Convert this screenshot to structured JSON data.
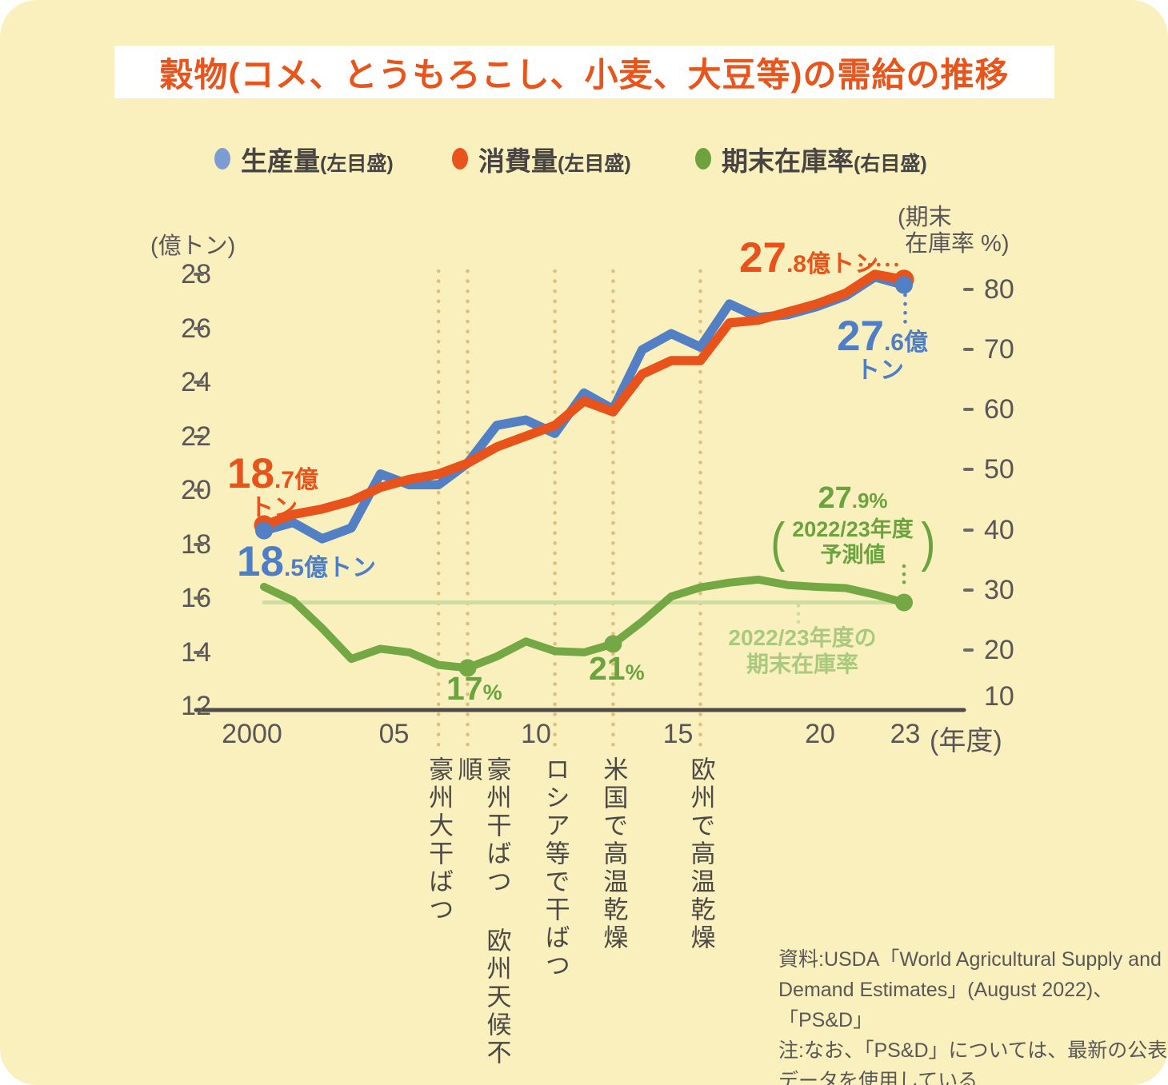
{
  "title": "穀物(コメ、とうもろこし、小麦、大豆等)の需給の推移",
  "legend": [
    {
      "label": "生産量",
      "note": "(左目盛)",
      "color": "#7d9cd3"
    },
    {
      "label": "消費量",
      "note": "(左目盛)",
      "color": "#e8541c"
    },
    {
      "label": "期末在庫率",
      "note": "(右目盛)",
      "color": "#6da23c"
    }
  ],
  "axes": {
    "left_unit": "(億トン)",
    "right_unit_line1": "(期末",
    "right_unit_line2": "在庫率 %)",
    "x_unit": "(年度)"
  },
  "annotations": {
    "consumption_start_big": "18",
    "consumption_start_small": ".7億",
    "consumption_start_unit": "トン",
    "production_start_big": "18",
    "production_start_small": ".5億トン",
    "consumption_end_big": "27",
    "consumption_end_small": ".8億トン",
    "production_end_big": "27",
    "production_end_small": ".6億",
    "production_end_unit": "トン",
    "stock_2007_big": "17",
    "stock_2007_small": "%",
    "stock_2012_big": "21",
    "stock_2012_small": "%",
    "stock_end_big": "27",
    "stock_end_small": ".9%",
    "forecast_line1": "2022/23年度",
    "forecast_line2": "予測値",
    "ref_label_line1": "2022/23年度の",
    "ref_label_line2": "期末在庫率"
  },
  "source_lines": [
    "資料:USDA「World Agricultural Supply and",
    "Demand Estimates」(August 2022)、「PS&D」",
    "注:なお、「PS&D」については、最新の公表",
    "データを使用している"
  ],
  "colors": {
    "background": "#faf0bd",
    "title": "#e9541a",
    "production": "#5380c5",
    "consumption": "#e8521b",
    "stock": "#74a844",
    "stock_light": "#cadfa0",
    "stock_label_light": "#a9c97e",
    "axis_text": "#5a5557",
    "baseline": "#4f4b4a",
    "event_dots": "#ddc07e"
  },
  "chart_data": {
    "type": "line",
    "title": "穀物(コメ、とうもろこし、小麦、大豆等)の需給の推移",
    "x": [
      2000,
      2001,
      2002,
      2003,
      2004,
      2005,
      2006,
      2007,
      2008,
      2009,
      2010,
      2011,
      2012,
      2013,
      2014,
      2015,
      2016,
      2017,
      2018,
      2019,
      2020,
      2021,
      2022
    ],
    "x_axis": {
      "tick_labels": [
        "2000",
        "05",
        "10",
        "15",
        "20",
        "23"
      ],
      "tick_years": [
        2000,
        2005,
        2010,
        2015,
        2020,
        2023
      ],
      "unit": "(年度)"
    },
    "left_axis": {
      "unit": "(億トン)",
      "ticks": [
        28,
        26,
        24,
        22,
        20,
        18,
        16,
        14,
        12
      ],
      "range": [
        12,
        28
      ]
    },
    "right_axis": {
      "unit": "(期末在庫率 %)",
      "ticks": [
        80,
        70,
        60,
        50,
        40,
        30,
        20,
        10
      ],
      "range": [
        10,
        80
      ]
    },
    "series": [
      {
        "name": "生産量",
        "axis": "left",
        "color": "#5380c5",
        "values": [
          18.5,
          18.8,
          18.2,
          18.6,
          20.6,
          20.2,
          20.2,
          21.0,
          22.4,
          22.6,
          22.1,
          23.6,
          23.0,
          25.2,
          25.8,
          25.3,
          26.9,
          26.4,
          26.5,
          26.8,
          27.2,
          27.9,
          27.6
        ]
      },
      {
        "name": "消費量",
        "axis": "left",
        "color": "#e8521b",
        "values": [
          18.7,
          19.1,
          19.3,
          19.6,
          20.1,
          20.4,
          20.6,
          21.0,
          21.6,
          22.0,
          22.4,
          23.3,
          22.9,
          24.3,
          24.8,
          24.8,
          26.2,
          26.3,
          26.6,
          26.9,
          27.3,
          28.0,
          27.8
        ]
      },
      {
        "name": "期末在庫率",
        "axis": "right",
        "color": "#74a844",
        "values": [
          30.5,
          28.2,
          23.6,
          18.5,
          20.2,
          19.6,
          17.5,
          17.0,
          18.9,
          21.4,
          19.8,
          19.6,
          21.0,
          24.7,
          28.9,
          30.4,
          31.2,
          31.7,
          30.8,
          30.5,
          30.3,
          29.2,
          27.9
        ]
      }
    ],
    "labeled_points": [
      {
        "series": "消費量",
        "year": 2000,
        "label": "18.7億トン"
      },
      {
        "series": "生産量",
        "year": 2000,
        "label": "18.5億トン"
      },
      {
        "series": "消費量",
        "year": 2022,
        "label": "27.8億トン"
      },
      {
        "series": "生産量",
        "year": 2022,
        "label": "27.6億トン"
      },
      {
        "series": "期末在庫率",
        "year": 2007,
        "label": "17%"
      },
      {
        "series": "期末在庫率",
        "year": 2012,
        "label": "21%"
      },
      {
        "series": "期末在庫率",
        "year": 2022,
        "label": "27.9%(2022/23年度予測値)"
      }
    ],
    "reference_line": {
      "axis": "right",
      "value": 27.9,
      "label": "2022/23年度の期末在庫率",
      "color": "#cadfa0"
    },
    "events": [
      {
        "year": 2006,
        "label": "豪州大干ばつ"
      },
      {
        "year": 2007,
        "label": "豪州干ばつ 欧州天候不順"
      },
      {
        "year": 2010,
        "label": "ロシア等で干ばつ"
      },
      {
        "year": 2012,
        "label": "米国で高温乾燥"
      },
      {
        "year": 2015,
        "label": "欧州で高温乾燥"
      }
    ],
    "legend_position": "top",
    "grid": false
  }
}
